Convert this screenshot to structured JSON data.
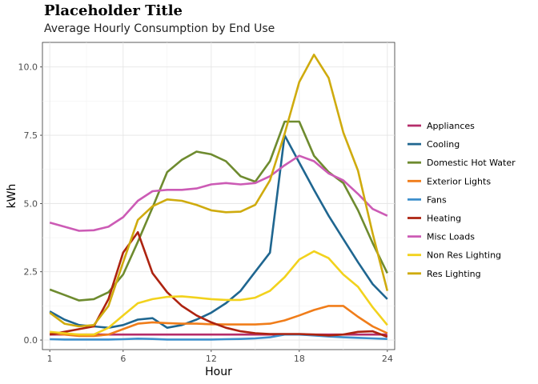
{
  "chart_data": {
    "type": "line",
    "title": "Placeholder Title",
    "subtitle": "Average Hourly Consumption by End Use",
    "xlabel": "Hour",
    "ylabel": "kWh",
    "xlim": [
      0.5,
      24.5
    ],
    "ylim": [
      -0.35,
      10.9
    ],
    "x_ticks": [
      1,
      6,
      12,
      18,
      24
    ],
    "y_ticks": [
      0.0,
      2.5,
      5.0,
      7.5,
      10.0
    ],
    "y_tick_labels": [
      "0.0",
      "2.5",
      "5.0",
      "7.5",
      "10.0"
    ],
    "grid": true,
    "legend_position": "right",
    "x": [
      1,
      2,
      3,
      4,
      5,
      6,
      7,
      8,
      9,
      10,
      11,
      12,
      13,
      14,
      15,
      16,
      17,
      18,
      19,
      20,
      21,
      22,
      23,
      24
    ],
    "series": [
      {
        "name": "Appliances",
        "color": "#b52d6a",
        "values": [
          0.2,
          0.2,
          0.2,
          0.2,
          0.2,
          0.2,
          0.2,
          0.2,
          0.2,
          0.2,
          0.2,
          0.2,
          0.2,
          0.2,
          0.2,
          0.2,
          0.2,
          0.2,
          0.2,
          0.2,
          0.2,
          0.2,
          0.2,
          0.2
        ]
      },
      {
        "name": "Cooling",
        "color": "#1f6690",
        "values": [
          1.05,
          0.75,
          0.55,
          0.5,
          0.45,
          0.55,
          0.75,
          0.8,
          0.45,
          0.55,
          0.75,
          1.0,
          1.35,
          1.8,
          2.5,
          3.2,
          7.5,
          6.5,
          5.5,
          4.55,
          3.7,
          2.85,
          2.05,
          1.5
        ]
      },
      {
        "name": "Domestic Hot Water",
        "color": "#6e8b2f",
        "values": [
          1.85,
          1.65,
          1.45,
          1.5,
          1.75,
          2.4,
          3.6,
          4.85,
          6.15,
          6.6,
          6.9,
          6.8,
          6.55,
          6.0,
          5.8,
          6.55,
          8.0,
          8.0,
          6.75,
          6.15,
          5.75,
          4.75,
          3.55,
          2.45
        ]
      },
      {
        "name": "Exterior Lights",
        "color": "#f07d1a",
        "values": [
          0.25,
          0.2,
          0.15,
          0.15,
          0.2,
          0.4,
          0.6,
          0.65,
          0.62,
          0.6,
          0.6,
          0.58,
          0.57,
          0.57,
          0.57,
          0.6,
          0.72,
          0.9,
          1.1,
          1.25,
          1.25,
          0.85,
          0.5,
          0.25
        ]
      },
      {
        "name": "Fans",
        "color": "#3d8fcc",
        "values": [
          0.03,
          0.02,
          0.02,
          0.02,
          0.02,
          0.03,
          0.05,
          0.04,
          0.02,
          0.02,
          0.02,
          0.02,
          0.03,
          0.04,
          0.06,
          0.1,
          0.2,
          0.2,
          0.17,
          0.13,
          0.1,
          0.08,
          0.06,
          0.04
        ]
      },
      {
        "name": "Heating",
        "color": "#ad2310",
        "values": [
          0.2,
          0.3,
          0.4,
          0.5,
          1.5,
          3.2,
          3.95,
          2.45,
          1.75,
          1.25,
          0.9,
          0.65,
          0.45,
          0.32,
          0.25,
          0.22,
          0.22,
          0.22,
          0.2,
          0.17,
          0.2,
          0.3,
          0.32,
          0.12
        ]
      },
      {
        "name": "Misc Loads",
        "color": "#cc5bb5",
        "values": [
          4.3,
          4.15,
          4.0,
          4.02,
          4.15,
          4.5,
          5.1,
          5.45,
          5.5,
          5.5,
          5.55,
          5.7,
          5.75,
          5.7,
          5.75,
          6.0,
          6.4,
          6.75,
          6.55,
          6.1,
          5.85,
          5.35,
          4.8,
          4.55
        ]
      },
      {
        "name": "Non Res Lighting",
        "color": "#f2d21d",
        "values": [
          0.3,
          0.25,
          0.2,
          0.2,
          0.45,
          0.9,
          1.35,
          1.5,
          1.58,
          1.6,
          1.55,
          1.5,
          1.47,
          1.47,
          1.55,
          1.8,
          2.3,
          2.95,
          3.25,
          3.0,
          2.4,
          1.95,
          1.2,
          0.55
        ]
      },
      {
        "name": "Res Lighting",
        "color": "#cfab0e",
        "values": [
          1.0,
          0.6,
          0.5,
          0.55,
          1.25,
          2.85,
          4.4,
          4.9,
          5.15,
          5.1,
          4.95,
          4.75,
          4.68,
          4.7,
          4.95,
          5.85,
          7.55,
          9.45,
          10.45,
          9.6,
          7.6,
          6.2,
          3.9,
          1.8
        ]
      }
    ]
  }
}
